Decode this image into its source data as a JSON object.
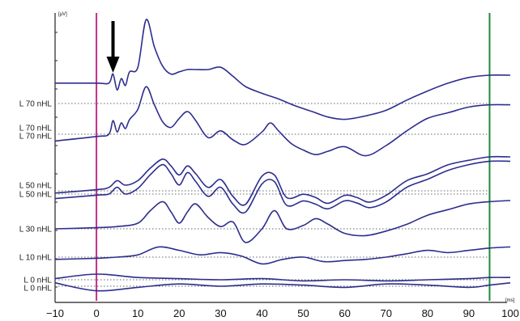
{
  "chart_data": {
    "type": "line",
    "title": "",
    "xlabel": "",
    "ylabel": "",
    "y_unit": "[µV]",
    "x_unit": "[ms]",
    "xlim": [
      -10,
      100
    ],
    "x_ticks": [
      "−10",
      "0",
      "10",
      "20",
      "30",
      "40",
      "50",
      "60",
      "70",
      "80",
      "90",
      "100"
    ],
    "grid": "dotted baseline per trace",
    "markers": [
      {
        "name": "stimulus onset",
        "x": 0,
        "color": "#c0308a"
      },
      {
        "name": "end of window",
        "x": 95,
        "color": "#1f8a3c"
      }
    ],
    "annotation": {
      "type": "arrow",
      "x": 4,
      "color": "#000000"
    },
    "trace_color": "#2d2d8f",
    "traces": [
      {
        "label": "L 70 nHL",
        "x": [
          -10,
          0,
          3,
          4,
          5,
          6,
          7,
          8,
          10,
          12,
          14,
          16,
          18,
          20,
          22,
          24,
          27,
          30,
          33,
          36,
          40,
          44,
          48,
          52,
          56,
          60,
          65,
          70,
          75,
          80,
          85,
          90,
          95,
          100
        ],
        "y": [
          1.8,
          1.8,
          1.8,
          2.6,
          1.2,
          2.2,
          1.6,
          2.8,
          3.2,
          7.4,
          5.0,
          3.3,
          2.6,
          2.8,
          3.0,
          3.0,
          3.0,
          3.2,
          2.4,
          1.5,
          0.9,
          0.4,
          -0.2,
          -0.7,
          -1.2,
          -1.4,
          -1.1,
          -0.6,
          0.3,
          1.1,
          1.8,
          2.3,
          2.5,
          2.5
        ]
      },
      {
        "label": "L 70 nHL",
        "x": [
          -10,
          0,
          3,
          4,
          5,
          6,
          7,
          8,
          10,
          12,
          14,
          16,
          18,
          20,
          22,
          24,
          27,
          30,
          33,
          36,
          40,
          42,
          44,
          47,
          50,
          53,
          56,
          60,
          65,
          70,
          75,
          80,
          85,
          90,
          95,
          100
        ],
        "y": [
          -0.6,
          -0.2,
          0.0,
          1.2,
          0.2,
          1.0,
          0.5,
          1.3,
          2.2,
          4.2,
          2.6,
          1.1,
          0.6,
          1.4,
          2.0,
          1.2,
          -0.3,
          0.3,
          -0.5,
          -0.9,
          0.2,
          1.0,
          0.3,
          -0.8,
          -1.4,
          -1.8,
          -1.5,
          -1.1,
          -1.9,
          -1.0,
          0.3,
          1.4,
          1.9,
          2.4,
          2.6,
          2.6
        ]
      },
      {
        "label": "L 50 nHL",
        "x": [
          -10,
          0,
          3,
          5,
          7,
          10,
          13,
          16,
          18,
          20,
          22,
          24,
          27,
          30,
          33,
          36,
          40,
          43,
          46,
          50,
          53,
          56,
          60,
          63,
          66,
          70,
          75,
          80,
          85,
          90,
          95,
          100
        ],
        "y": [
          -0.2,
          0.1,
          0.3,
          0.9,
          0.5,
          0.9,
          2.0,
          2.8,
          2.2,
          1.4,
          2.2,
          1.5,
          0.3,
          1.0,
          -0.5,
          -1.2,
          1.3,
          1.4,
          -0.6,
          -0.3,
          -0.6,
          -1.1,
          -0.4,
          -0.6,
          -1.0,
          -0.4,
          0.9,
          1.5,
          2.3,
          2.7,
          3.0,
          3.0
        ]
      },
      {
        "label": "L 50 nHL",
        "x": [
          -10,
          0,
          3,
          5,
          7,
          10,
          13,
          16,
          18,
          20,
          22,
          24,
          27,
          30,
          33,
          36,
          40,
          43,
          46,
          50,
          53,
          56,
          60,
          63,
          66,
          70,
          75,
          80,
          85,
          90,
          95,
          100
        ],
        "y": [
          -0.4,
          -0.1,
          0.0,
          0.6,
          0.0,
          0.5,
          1.7,
          2.6,
          1.8,
          0.8,
          1.9,
          1.1,
          -0.2,
          0.6,
          -0.9,
          -1.6,
          0.9,
          1.1,
          -1.0,
          -0.6,
          -0.9,
          -1.3,
          -0.6,
          -0.8,
          -1.2,
          -0.7,
          0.6,
          1.3,
          2.1,
          2.6,
          2.9,
          2.9
        ]
      },
      {
        "label": "L 30 nHL",
        "x": [
          -10,
          0,
          5,
          10,
          13,
          16,
          18,
          20,
          22,
          24,
          27,
          30,
          33,
          36,
          40,
          43,
          46,
          50,
          53,
          56,
          60,
          65,
          70,
          75,
          80,
          85,
          90,
          95,
          100
        ],
        "y": [
          0.0,
          0.1,
          0.2,
          0.5,
          1.6,
          2.4,
          1.5,
          0.5,
          1.5,
          2.2,
          1.0,
          0.2,
          0.6,
          -1.2,
          0.0,
          1.6,
          0.0,
          0.3,
          0.9,
          0.4,
          -0.4,
          -0.6,
          -0.2,
          0.4,
          1.2,
          1.7,
          2.2,
          2.4,
          2.5
        ]
      },
      {
        "label": "L 10 nHL",
        "x": [
          -10,
          0,
          5,
          10,
          15,
          20,
          25,
          30,
          35,
          40,
          45,
          50,
          55,
          60,
          65,
          70,
          75,
          80,
          85,
          90,
          95,
          100
        ],
        "y": [
          -0.2,
          -0.1,
          0.0,
          0.2,
          0.9,
          0.6,
          0.2,
          0.4,
          0.1,
          -0.6,
          -0.2,
          0.0,
          -0.4,
          -0.3,
          -0.2,
          0.0,
          0.3,
          0.6,
          0.4,
          0.6,
          0.8,
          0.9
        ]
      },
      {
        "label": "L 0 nHL",
        "x": [
          -10,
          0,
          10,
          20,
          30,
          40,
          50,
          60,
          70,
          80,
          90,
          95,
          100
        ],
        "y": [
          0.1,
          0.5,
          0.2,
          0.1,
          0.0,
          0.1,
          -0.1,
          0.0,
          -0.1,
          0.0,
          0.1,
          0.2,
          0.2
        ]
      },
      {
        "label": "L 0 nHL",
        "x": [
          -10,
          0,
          10,
          20,
          30,
          40,
          50,
          60,
          70,
          80,
          90,
          95,
          100
        ],
        "y": [
          0.3,
          -0.4,
          -0.1,
          0.2,
          0.0,
          0.2,
          0.1,
          -0.1,
          0.2,
          0.1,
          -0.1,
          0.1,
          0.3
        ]
      }
    ]
  }
}
